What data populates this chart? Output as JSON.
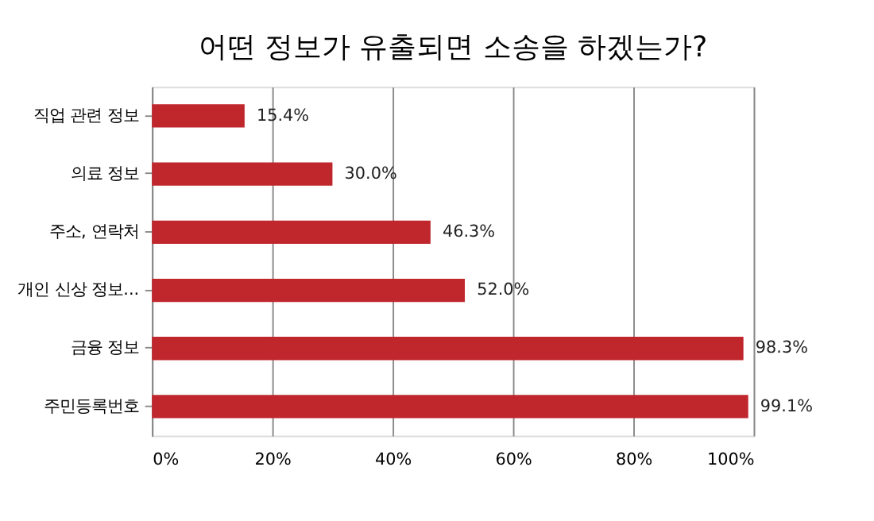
{
  "chart_data": {
    "type": "bar",
    "orientation": "horizontal",
    "title": "어떤 정보가 유출되면 소송을 하겠는가?",
    "categories": [
      "직업 관련 정보",
      "의료 정보",
      "주소, 연락처",
      "개인 신상 정보...",
      "금융 정보",
      "주민등록번호"
    ],
    "values": [
      15.4,
      30.0,
      46.3,
      52.0,
      98.3,
      99.1
    ],
    "value_labels": [
      "15.4%",
      "30.0%",
      "46.3%",
      "52.0%",
      "98.3%",
      "99.1%"
    ],
    "color": "#c0272d",
    "xlim": [
      0,
      100
    ],
    "xticks": [
      {
        "value": 0,
        "label": "0%"
      },
      {
        "value": 20,
        "label": "20%"
      },
      {
        "value": 40,
        "label": "40%"
      },
      {
        "value": 60,
        "label": "60%"
      },
      {
        "value": 80,
        "label": "80%"
      },
      {
        "value": 100,
        "label": "100%"
      }
    ],
    "grid": "x"
  }
}
